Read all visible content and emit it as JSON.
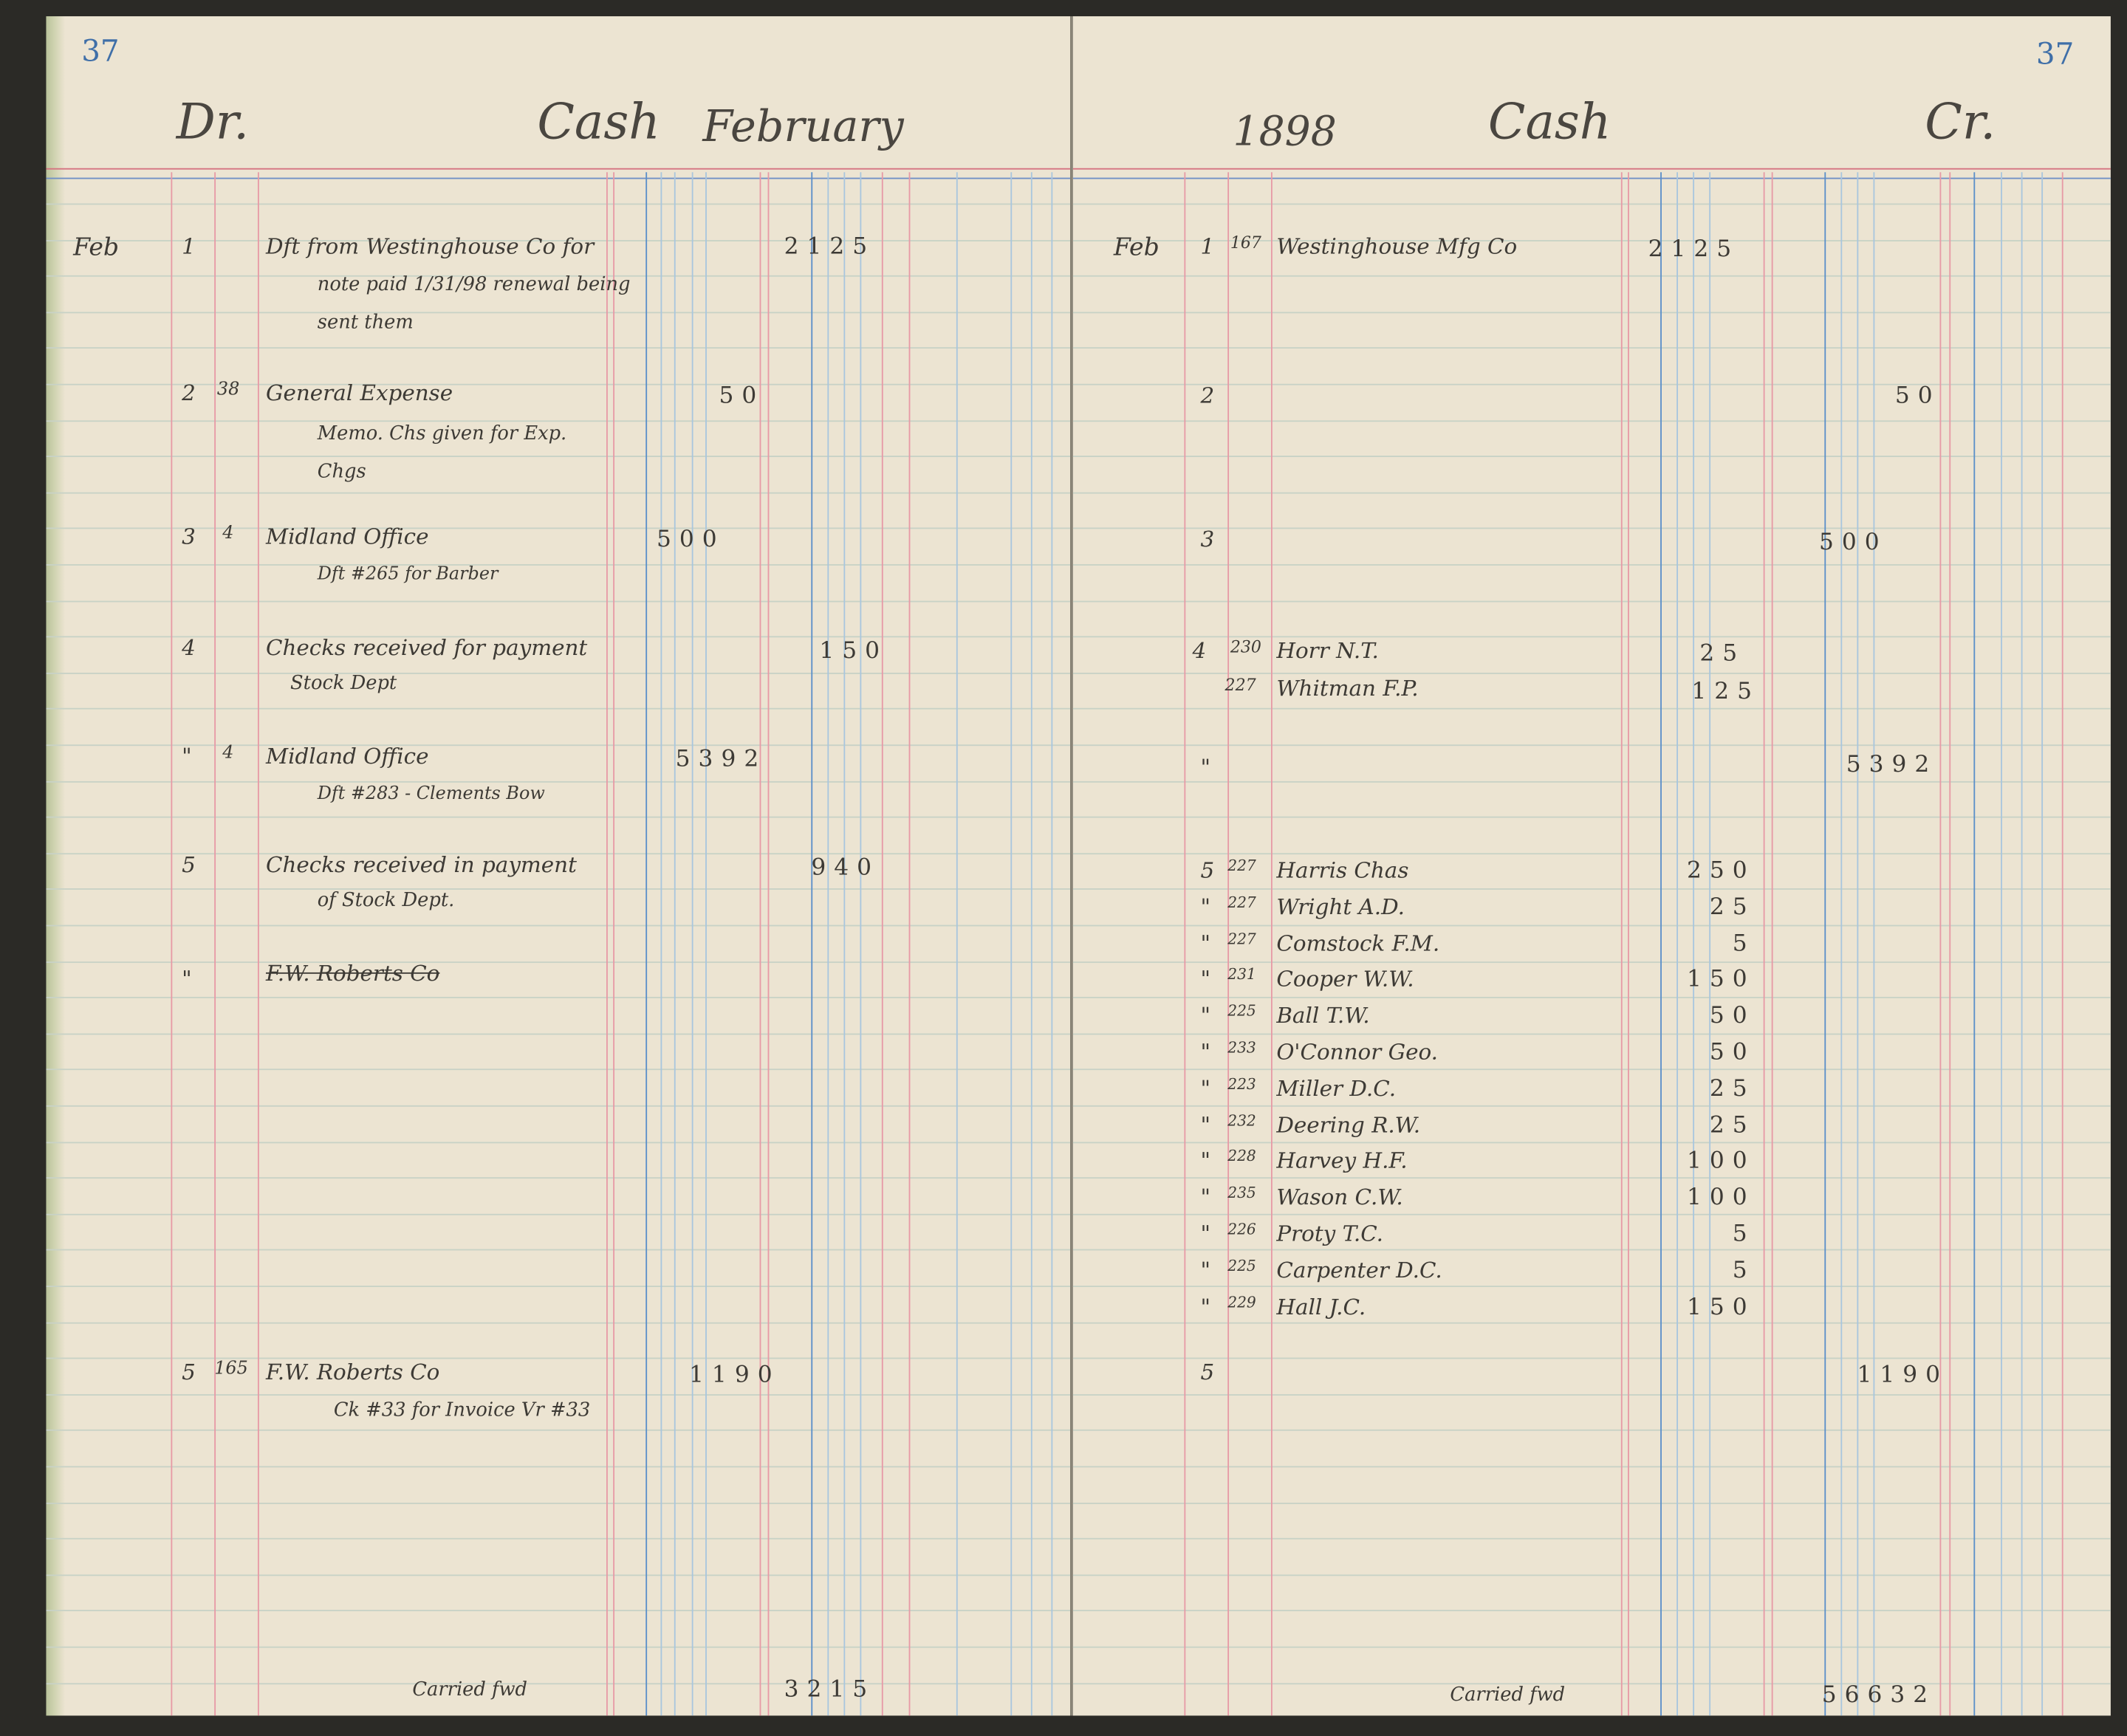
{
  "left": {
    "page_number": "37",
    "heading_dr": "Dr.",
    "heading_cash": "Cash",
    "heading_month": "February",
    "entries": [
      {
        "month": "Feb",
        "day": "1",
        "folio": "",
        "lines": [
          "Dft from Westinghouse Co for",
          "note paid 1/31/98 renewal being",
          "sent them"
        ],
        "amount_a": "",
        "amount_b": "2125"
      },
      {
        "day": "2",
        "folio": "38",
        "lines": [
          "General Expense",
          "Memo. Chs given for Exp.",
          "Chgs"
        ],
        "amount_a": "50",
        "amount_b": ""
      },
      {
        "day": "3",
        "folio": "4",
        "lines": [
          "Midland Office",
          "Dft #265 for Barber"
        ],
        "amount_a": "500",
        "amount_b": ""
      },
      {
        "day": "4",
        "folio": "",
        "lines": [
          "Checks received for payment",
          "Stock Dept"
        ],
        "amount_a": "",
        "amount_b": "150"
      },
      {
        "day": "\"",
        "folio": "4",
        "lines": [
          "Midland Office",
          "Dft #283 - Clements Bow"
        ],
        "amount_a": "5392",
        "amount_b": ""
      },
      {
        "day": "5",
        "folio": "",
        "lines": [
          "Checks received in payment",
          "of Stock Dept."
        ],
        "amount_a": "",
        "amount_b": "940"
      },
      {
        "day": "\"",
        "folio": "",
        "lines": [
          "F.W. Roberts Co"
        ],
        "amount_a": "",
        "amount_b": ""
      },
      {
        "day": "5",
        "folio": "165",
        "lines": [
          "F.W. Roberts Co",
          "Ck #33 for Invoice Vr #33"
        ],
        "amount_a": "1190",
        "amount_b": ""
      }
    ],
    "footer_label": "Carried fwd",
    "footer_total": "3215"
  },
  "right": {
    "page_number": "37",
    "heading_year": "1898",
    "heading_cash": "Cash",
    "heading_cr": "Cr.",
    "entries_top": [
      {
        "month": "Feb",
        "day": "1",
        "folio": "167",
        "name": "Westinghouse Mfg Co",
        "amount_a": "2125",
        "amount_c": ""
      },
      {
        "day": "2",
        "folio": "",
        "name": "",
        "amount_a": "",
        "amount_c": "50"
      },
      {
        "day": "3",
        "folio": "",
        "name": "",
        "amount_a": "",
        "amount_c": "500"
      },
      {
        "day": "4",
        "folio": "230",
        "name": "Horr N.T.",
        "amount_a": "25",
        "amount_c": ""
      },
      {
        "day": "",
        "folio": "227",
        "name": "Whitman F.P.",
        "amount_a": "125",
        "amount_c": ""
      },
      {
        "day": "\"",
        "folio": "",
        "name": "",
        "amount_a": "",
        "amount_c": "5392"
      }
    ],
    "entries_list": [
      {
        "day": "5",
        "folio": "227",
        "name": "Harris Chas",
        "amount": "250"
      },
      {
        "day": "\"",
        "folio": "227",
        "name": "Wright A.D.",
        "amount": "25"
      },
      {
        "day": "\"",
        "folio": "227",
        "name": "Comstock F.M.",
        "amount": "5"
      },
      {
        "day": "\"",
        "folio": "231",
        "name": "Cooper W.W.",
        "amount": "150"
      },
      {
        "day": "\"",
        "folio": "225",
        "name": "Ball T.W.",
        "amount": "50"
      },
      {
        "day": "\"",
        "folio": "233",
        "name": "O'Connor Geo.",
        "amount": "50"
      },
      {
        "day": "\"",
        "folio": "223",
        "name": "Miller D.C.",
        "amount": "25"
      },
      {
        "day": "\"",
        "folio": "232",
        "name": "Deering R.W.",
        "amount": "25"
      },
      {
        "day": "\"",
        "folio": "228",
        "name": "Harvey H.F.",
        "amount": "100"
      },
      {
        "day": "\"",
        "folio": "235",
        "name": "Wason C.W.",
        "amount": "100"
      },
      {
        "day": "\"",
        "folio": "226",
        "name": "Proty T.C.",
        "amount": "5"
      },
      {
        "day": "\"",
        "folio": "225",
        "name": "Carpenter D.C.",
        "amount": "5"
      },
      {
        "day": "\"",
        "folio": "229",
        "name": "Hall J.C.",
        "amount": "150"
      }
    ],
    "entry_last": {
      "day": "5",
      "amount_c": "1190"
    },
    "footer_label": "Carried fwd",
    "footer_total": "56632"
  }
}
